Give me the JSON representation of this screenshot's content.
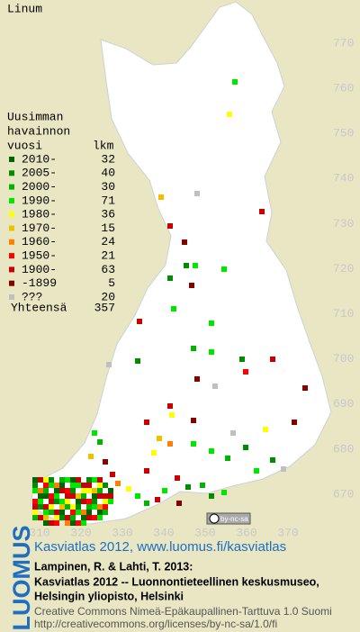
{
  "map": {
    "title": "Linum",
    "legend": {
      "heading": [
        "Uusimman",
        "havainnon",
        "vuosi"
      ],
      "count_heading": "lkm",
      "entries": [
        {
          "label": "2010-",
          "count": 32,
          "color": "#006400"
        },
        {
          "label": "2005-",
          "count": 40,
          "color": "#008c00"
        },
        {
          "label": "2000-",
          "count": 30,
          "color": "#00b400"
        },
        {
          "label": "1990-",
          "count": 71,
          "color": "#00e600"
        },
        {
          "label": "1980-",
          "count": 36,
          "color": "#ffff00"
        },
        {
          "label": "1970-",
          "count": 15,
          "color": "#f0c000"
        },
        {
          "label": "1960-",
          "count": 24,
          "color": "#ff8000"
        },
        {
          "label": "1950-",
          "count": 21,
          "color": "#ff0000"
        },
        {
          "label": "1900-",
          "count": 63,
          "color": "#c80000"
        },
        {
          "label": "-1899",
          "count": 5,
          "color": "#820000"
        },
        {
          "label": "???",
          "count": 20,
          "color": "#c0c0c0"
        }
      ],
      "total_label": "Yhteensä",
      "total": 357
    },
    "northing_labels": [
      770,
      760,
      750,
      740,
      730,
      720,
      710,
      700,
      690,
      680,
      670
    ],
    "easting_labels": [
      310,
      320,
      330,
      340,
      350,
      360,
      370
    ],
    "license_badge": "by-nc-sa"
  },
  "footer": {
    "logo": "LUOMUS",
    "atlas_link": "Kasviatlas 2012, www.luomus.fi/kasviatlas",
    "citation": [
      "Lampinen, R. & Lahti, T. 2013:",
      "Kasviatlas 2012 -- Luonnontieteellinen keskusmuseo,",
      "Helsingin yliopisto, Helsinki"
    ],
    "license": [
      "Creative Commons Nimeä-Epäkaupallinen-Tarttuva 1.0 Suomi",
      "http://creativecommons.org/licenses/by-nc-sa/1.0/fi"
    ]
  }
}
